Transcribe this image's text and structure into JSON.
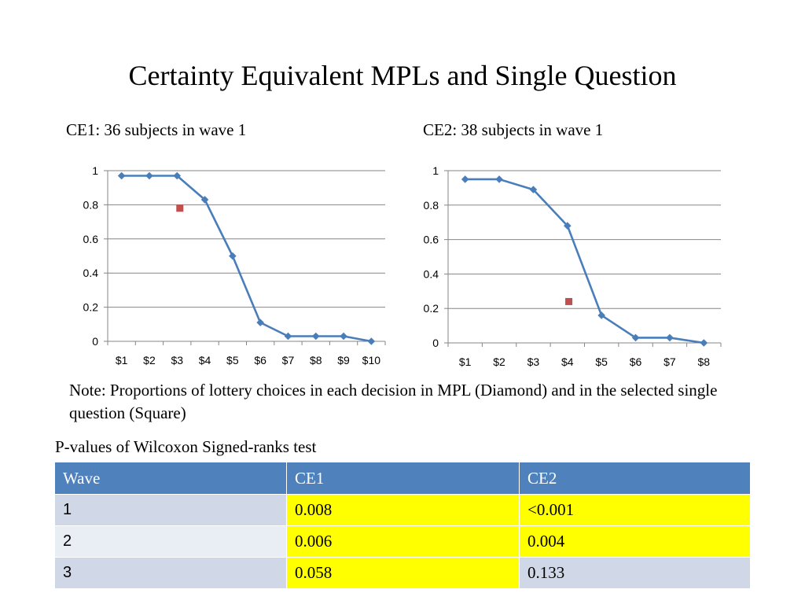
{
  "slide": {
    "title": "Certainty Equivalent MPLs and Single Question",
    "note": "Note: Proportions of lottery choices in each decision in MPL (Diamond) and in the selected single question (Square)",
    "table_caption": "P-values of Wilcoxon Signed-ranks test"
  },
  "chart_data": [
    {
      "type": "line",
      "title": "CE1: 36 subjects in wave 1",
      "categories": [
        "$1",
        "$2",
        "$3",
        "$4",
        "$5",
        "$6",
        "$7",
        "$8",
        "$9",
        "$10"
      ],
      "y_ticks": [
        "0",
        "0.2",
        "0.4",
        "0.6",
        "0.8",
        "1"
      ],
      "ylim": [
        0,
        1
      ],
      "grid": true,
      "series": [
        {
          "marker": "diamond",
          "color": "#4a7ebb",
          "values": [
            0.97,
            0.97,
            0.97,
            0.83,
            0.5,
            0.11,
            0.03,
            0.03,
            0.03,
            0.0
          ]
        },
        {
          "marker": "square",
          "color": "#c0504d",
          "x": 2.1,
          "value": 0.78
        }
      ]
    },
    {
      "type": "line",
      "title": "CE2: 38 subjects in wave 1",
      "categories": [
        "$1",
        "$2",
        "$3",
        "$4",
        "$5",
        "$6",
        "$7",
        "$8"
      ],
      "y_ticks": [
        "0",
        "0.2",
        "0.4",
        "0.6",
        "0.8",
        "1"
      ],
      "ylim": [
        0,
        1
      ],
      "grid": true,
      "series": [
        {
          "marker": "diamond",
          "color": "#4a7ebb",
          "values": [
            0.95,
            0.95,
            0.89,
            0.68,
            0.16,
            0.03,
            0.03,
            0.0
          ]
        },
        {
          "marker": "square",
          "color": "#c0504d",
          "x": 3.04,
          "value": 0.24
        }
      ]
    }
  ],
  "table": {
    "headers": [
      "Wave",
      "CE1",
      "CE2"
    ],
    "rows": [
      {
        "wave": "1",
        "ce1": "0.008",
        "ce2": "<0.001",
        "ce1_highlight": true,
        "ce2_highlight": true
      },
      {
        "wave": "2",
        "ce1": "0.006",
        "ce2": "0.004",
        "ce1_highlight": true,
        "ce2_highlight": true
      },
      {
        "wave": "3",
        "ce1": "0.058",
        "ce2": "0.133",
        "ce1_highlight": true,
        "ce2_highlight": false
      }
    ],
    "highlight_color": "#ffff00"
  }
}
